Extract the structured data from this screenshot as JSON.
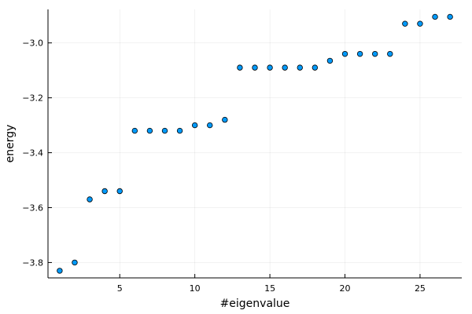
{
  "chart_data": {
    "type": "scatter",
    "xlabel": "#eigenvalue",
    "ylabel": "energy",
    "xlim": [
      0.22,
      27.78
    ],
    "ylim": [
      -3.856,
      -2.878
    ],
    "xticks": [
      5,
      10,
      15,
      20,
      25
    ],
    "xtick_labels": [
      "5",
      "10",
      "15",
      "20",
      "25"
    ],
    "yticks": [
      -3.8,
      -3.6,
      -3.4,
      -3.2,
      -3.0
    ],
    "ytick_labels": [
      "−3.8",
      "−3.6",
      "−3.4",
      "−3.2",
      "−3.0"
    ],
    "grid": true,
    "legend": false,
    "marker_color": "#009AFA",
    "series": [
      {
        "x": [
          1,
          2,
          3,
          4,
          5,
          6,
          7,
          8,
          9,
          10,
          11,
          12,
          13,
          14,
          15,
          16,
          17,
          18,
          19,
          20,
          21,
          22,
          23,
          24,
          25,
          26,
          27
        ],
        "y": [
          -3.83,
          -3.8,
          -3.57,
          -3.54,
          -3.54,
          -3.32,
          -3.32,
          -3.32,
          -3.32,
          -3.3,
          -3.3,
          -3.28,
          -3.09,
          -3.09,
          -3.09,
          -3.09,
          -3.09,
          -3.09,
          -3.065,
          -3.04,
          -3.04,
          -3.04,
          -3.04,
          -2.93,
          -2.93,
          -2.905,
          -2.905
        ]
      }
    ]
  }
}
